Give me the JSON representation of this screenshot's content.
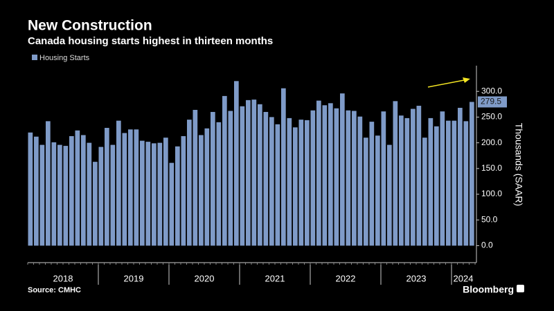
{
  "chart_data": {
    "type": "bar",
    "title": "New Construction",
    "subtitle": "Canada housing starts highest in thirteen months",
    "source": "Source: CMHC",
    "brand": "Bloomberg",
    "y_axis_label": "Thousands (SAAR)",
    "series": [
      {
        "name": "Housing Starts",
        "color": "#7f9bc8",
        "values": [
          220,
          212,
          196,
          242,
          201,
          196,
          194,
          213,
          224,
          215,
          200,
          163,
          192,
          229,
          196,
          243,
          219,
          226,
          226,
          204,
          202,
          199,
          200,
          210,
          161,
          193,
          213,
          245,
          264,
          215,
          228,
          260,
          240,
          291,
          262,
          320,
          271,
          283,
          284,
          275,
          260,
          250,
          236,
          306,
          248,
          230,
          245,
          244,
          263,
          282,
          273,
          277,
          267,
          296,
          263,
          262,
          251,
          210,
          241,
          214,
          261,
          196,
          281,
          253,
          248,
          266,
          272,
          210,
          248,
          232,
          261,
          243,
          243,
          268,
          242,
          279.5
        ]
      }
    ],
    "categories": [
      "2018",
      "2018",
      "2018",
      "2018",
      "2018",
      "2018",
      "2018",
      "2018",
      "2018",
      "2018",
      "2018",
      "2018",
      "2019",
      "2019",
      "2019",
      "2019",
      "2019",
      "2019",
      "2019",
      "2019",
      "2019",
      "2019",
      "2019",
      "2019",
      "2020",
      "2020",
      "2020",
      "2020",
      "2020",
      "2020",
      "2020",
      "2020",
      "2020",
      "2020",
      "2020",
      "2020",
      "2021",
      "2021",
      "2021",
      "2021",
      "2021",
      "2021",
      "2021",
      "2021",
      "2021",
      "2021",
      "2021",
      "2021",
      "2022",
      "2022",
      "2022",
      "2022",
      "2022",
      "2022",
      "2022",
      "2022",
      "2022",
      "2022",
      "2022",
      "2022",
      "2023",
      "2023",
      "2023",
      "2023",
      "2023",
      "2023",
      "2023",
      "2023",
      "2023",
      "2023",
      "2023",
      "2023",
      "2024",
      "2024",
      "2024",
      "2024"
    ],
    "ylim": [
      -33,
      350
    ],
    "yticks": [
      {
        "value": 0,
        "label": "0.0"
      },
      {
        "value": 50,
        "label": "50.0"
      },
      {
        "value": 100,
        "label": "100.0"
      },
      {
        "value": 150,
        "label": "150.0"
      },
      {
        "value": 200,
        "label": "200.0"
      },
      {
        "value": 250,
        "label": "250.0"
      },
      {
        "value": 300,
        "label": "300.0"
      }
    ],
    "legend": "top-left"
  }
}
